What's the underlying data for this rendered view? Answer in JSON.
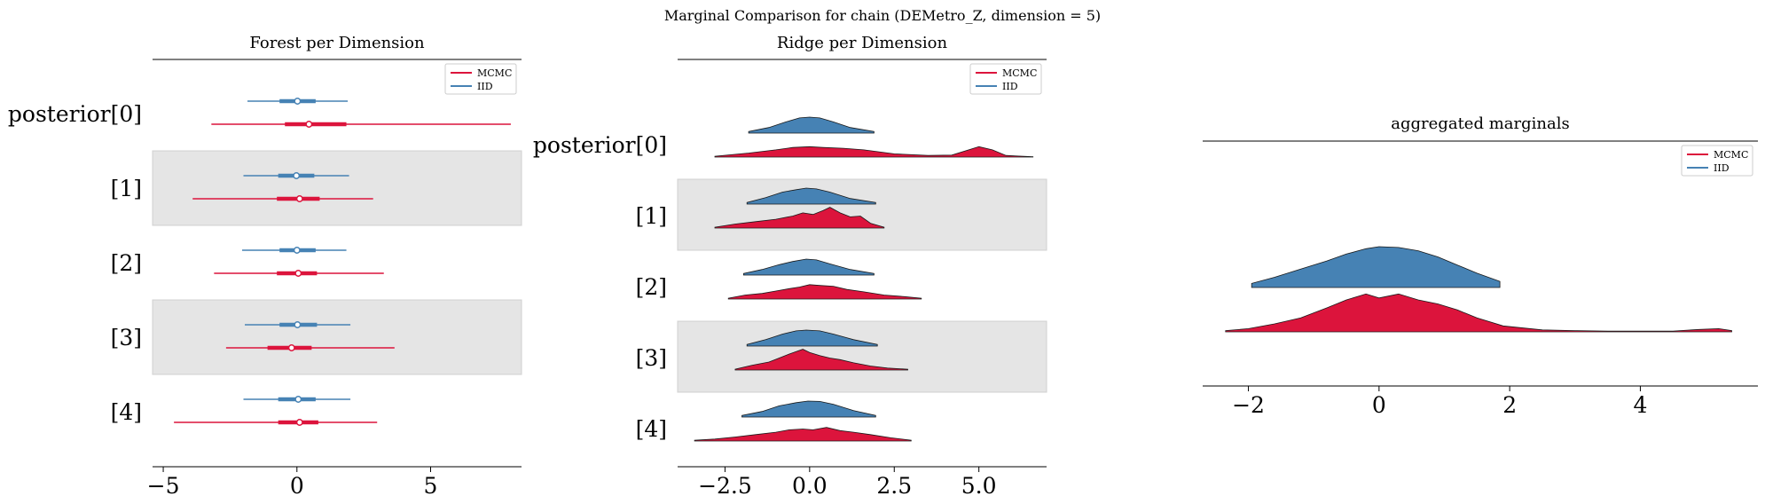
{
  "figure": {
    "suptitle": "Marginal Comparison for chain (DEMetro_Z, dimension = 5)"
  },
  "colors": {
    "mcmc": "#dc143c",
    "iid": "#4682b4",
    "band": "#e5e5e5"
  },
  "chart_data": [
    {
      "type": "forest",
      "title": "Forest per Dimension",
      "row_labels": [
        "posterior[0]",
        "[1]",
        "[2]",
        "[3]",
        "[4]"
      ],
      "xlim": [
        -5.4,
        8.4
      ],
      "xticks": [
        -5,
        0,
        5
      ],
      "xtick_labels": [
        "−5",
        "0",
        "5"
      ],
      "legend": {
        "position": "top-right",
        "entries": [
          "MCMC",
          "IID"
        ]
      },
      "series": [
        {
          "name": "IID",
          "color": "iid",
          "rows": [
            {
              "hdi": [
                -1.85,
                1.9
              ],
              "iqr": [
                -0.65,
                0.7
              ],
              "point": 0.02
            },
            {
              "hdi": [
                -2.0,
                1.95
              ],
              "iqr": [
                -0.7,
                0.65
              ],
              "point": -0.02
            },
            {
              "hdi": [
                -2.05,
                1.85
              ],
              "iqr": [
                -0.65,
                0.7
              ],
              "point": 0.0
            },
            {
              "hdi": [
                -1.95,
                2.0
              ],
              "iqr": [
                -0.65,
                0.75
              ],
              "point": 0.02
            },
            {
              "hdi": [
                -2.0,
                2.0
              ],
              "iqr": [
                -0.7,
                0.7
              ],
              "point": 0.05
            }
          ]
        },
        {
          "name": "MCMC",
          "color": "mcmc",
          "rows": [
            {
              "hdi": [
                -3.2,
                8.0
              ],
              "iqr": [
                -0.45,
                1.85
              ],
              "point": 0.45
            },
            {
              "hdi": [
                -3.9,
                2.85
              ],
              "iqr": [
                -0.75,
                0.85
              ],
              "point": 0.1
            },
            {
              "hdi": [
                -3.1,
                3.25
              ],
              "iqr": [
                -0.75,
                0.75
              ],
              "point": 0.05
            },
            {
              "hdi": [
                -2.65,
                3.65
              ],
              "iqr": [
                -1.1,
                0.55
              ],
              "point": -0.2
            },
            {
              "hdi": [
                -4.6,
                3.0
              ],
              "iqr": [
                -0.7,
                0.8
              ],
              "point": 0.1
            }
          ]
        }
      ]
    },
    {
      "type": "ridgeline",
      "title": "Ridge per Dimension",
      "row_labels": [
        "posterior[0]",
        "[1]",
        "[2]",
        "[3]",
        "[4]"
      ],
      "xlim": [
        -3.9,
        7.0
      ],
      "xticks": [
        -2.5,
        0.0,
        2.5,
        5.0
      ],
      "xtick_labels": [
        "−2.5",
        "0.0",
        "2.5",
        "5.0"
      ],
      "legend": {
        "position": "top-right",
        "entries": [
          "MCMC",
          "IID"
        ]
      },
      "series": [
        {
          "name": "IID",
          "color": "iid",
          "rows": [
            {
              "x": [
                -1.8,
                -1.2,
                -0.7,
                -0.3,
                0.0,
                0.3,
                0.7,
                1.2,
                1.9
              ],
              "y": [
                0.1,
                0.35,
                0.7,
                0.95,
                1.0,
                0.95,
                0.7,
                0.35,
                0.1
              ]
            },
            {
              "x": [
                -1.85,
                -1.3,
                -0.8,
                -0.4,
                -0.1,
                0.2,
                0.6,
                1.2,
                1.95
              ],
              "y": [
                0.1,
                0.4,
                0.75,
                0.9,
                1.0,
                0.95,
                0.75,
                0.35,
                0.1
              ]
            },
            {
              "x": [
                -1.95,
                -1.4,
                -0.9,
                -0.5,
                -0.1,
                0.2,
                0.6,
                1.2,
                1.9
              ],
              "y": [
                0.1,
                0.35,
                0.65,
                0.85,
                1.0,
                0.95,
                0.7,
                0.35,
                0.1
              ]
            },
            {
              "x": [
                -1.85,
                -1.3,
                -0.8,
                -0.4,
                -0.1,
                0.3,
                0.7,
                1.3,
                2.0
              ],
              "y": [
                0.1,
                0.4,
                0.75,
                0.95,
                1.0,
                0.95,
                0.75,
                0.4,
                0.1
              ]
            },
            {
              "x": [
                -2.0,
                -1.4,
                -0.9,
                -0.4,
                -0.05,
                0.3,
                0.7,
                1.3,
                1.95
              ],
              "y": [
                0.1,
                0.35,
                0.7,
                0.9,
                1.0,
                0.98,
                0.8,
                0.4,
                0.1
              ]
            }
          ]
        },
        {
          "name": "MCMC",
          "color": "mcmc",
          "rows": [
            {
              "x": [
                -2.8,
                -1.8,
                -1.0,
                -0.5,
                0.0,
                0.4,
                1.0,
                1.6,
                2.5,
                3.5,
                4.2,
                4.7,
                5.0,
                5.4,
                5.8,
                6.6
              ],
              "y": [
                0.05,
                0.25,
                0.45,
                0.6,
                0.65,
                0.6,
                0.55,
                0.45,
                0.2,
                0.1,
                0.12,
                0.45,
                0.65,
                0.45,
                0.1,
                0.02
              ]
            },
            {
              "x": [
                -2.8,
                -2.2,
                -1.6,
                -1.0,
                -0.5,
                -0.2,
                0.1,
                0.4,
                0.6,
                0.9,
                1.2,
                1.5,
                1.8,
                2.2
              ],
              "y": [
                0.05,
                0.25,
                0.4,
                0.55,
                0.75,
                0.95,
                0.85,
                1.1,
                1.3,
                0.95,
                0.7,
                0.75,
                0.3,
                0.05
              ]
            },
            {
              "x": [
                -2.4,
                -1.9,
                -1.4,
                -1.0,
                -0.6,
                -0.3,
                0.0,
                0.3,
                0.7,
                1.1,
                1.6,
                2.2,
                2.8,
                3.3
              ],
              "y": [
                0.05,
                0.25,
                0.35,
                0.5,
                0.65,
                0.75,
                0.9,
                0.85,
                0.8,
                0.6,
                0.45,
                0.25,
                0.15,
                0.05
              ]
            },
            {
              "x": [
                -2.2,
                -1.7,
                -1.2,
                -0.9,
                -0.6,
                -0.4,
                -0.2,
                0.0,
                0.3,
                0.6,
                0.9,
                1.3,
                1.8,
                2.3,
                2.9
              ],
              "y": [
                0.05,
                0.3,
                0.5,
                0.75,
                1.0,
                1.15,
                1.3,
                1.1,
                0.9,
                0.75,
                0.65,
                0.45,
                0.25,
                0.12,
                0.05
              ]
            },
            {
              "x": [
                -3.4,
                -2.8,
                -2.2,
                -1.6,
                -1.0,
                -0.6,
                -0.2,
                0.1,
                0.5,
                0.9,
                1.3,
                1.8,
                2.4,
                3.0
              ],
              "y": [
                0.05,
                0.12,
                0.25,
                0.4,
                0.55,
                0.7,
                0.75,
                0.7,
                0.85,
                0.65,
                0.55,
                0.4,
                0.2,
                0.05
              ]
            }
          ]
        }
      ]
    },
    {
      "type": "ridgeline",
      "title": "aggregated marginals",
      "xlim": [
        -2.7,
        5.8
      ],
      "xticks": [
        -2,
        0,
        2,
        4
      ],
      "xtick_labels": [
        "−2",
        "0",
        "2",
        "4"
      ],
      "legend": {
        "position": "top-right",
        "entries": [
          "MCMC",
          "IID"
        ]
      },
      "series": [
        {
          "name": "IID",
          "color": "iid",
          "x": [
            -1.95,
            -1.6,
            -1.2,
            -0.8,
            -0.5,
            -0.2,
            0.0,
            0.3,
            0.6,
            0.9,
            1.2,
            1.5,
            1.85
          ],
          "y": [
            0.1,
            0.25,
            0.45,
            0.65,
            0.82,
            0.95,
            1.0,
            0.98,
            0.9,
            0.75,
            0.55,
            0.35,
            0.15
          ]
        },
        {
          "name": "MCMC",
          "color": "mcmc",
          "x": [
            -2.35,
            -2.0,
            -1.6,
            -1.2,
            -0.8,
            -0.5,
            -0.2,
            0.0,
            0.3,
            0.6,
            0.9,
            1.2,
            1.5,
            1.9,
            2.5,
            3.0,
            3.5,
            4.0,
            4.5,
            4.9,
            5.2,
            5.4
          ],
          "y": [
            0.03,
            0.08,
            0.2,
            0.35,
            0.6,
            0.8,
            0.95,
            0.85,
            0.95,
            0.8,
            0.7,
            0.55,
            0.35,
            0.15,
            0.05,
            0.03,
            0.02,
            0.02,
            0.02,
            0.06,
            0.08,
            0.03
          ]
        }
      ]
    }
  ]
}
